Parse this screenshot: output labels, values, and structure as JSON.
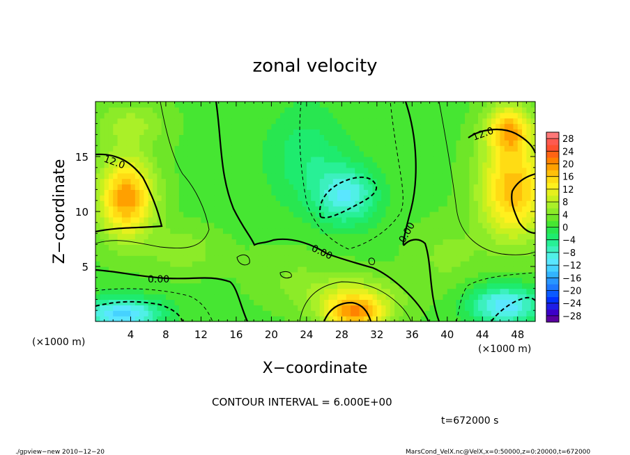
{
  "chart_data": {
    "type": "heatmap",
    "title": "zonal velocity",
    "xlabel": "X−coordinate",
    "ylabel": "Z−coordinate",
    "x_unit_left": "(×1000 m)",
    "x_unit_right": "(×1000 m)",
    "xlim": [
      0,
      50
    ],
    "ylim": [
      0,
      20
    ],
    "x_ticks": [
      4,
      8,
      12,
      16,
      20,
      24,
      28,
      32,
      36,
      40,
      44,
      48
    ],
    "x_tick_labels": [
      "4",
      "8",
      "12",
      "16",
      "20",
      "24",
      "28",
      "32",
      "36",
      "40",
      "44",
      "48"
    ],
    "y_ticks": [
      5,
      10,
      15
    ],
    "y_tick_labels": [
      "5",
      "10",
      "15"
    ],
    "colorbar": {
      "levels": [
        -30,
        -28,
        -26,
        -24,
        -22,
        -20,
        -18,
        -16,
        -14,
        -12,
        -10,
        -8,
        -6,
        -4,
        -2,
        0,
        2,
        4,
        6,
        8,
        10,
        12,
        14,
        16,
        18,
        20,
        22,
        24,
        26,
        28,
        30
      ],
      "colors": [
        "#5a00a0",
        "#3c00c8",
        "#1e1ee6",
        "#0032ff",
        "#0a5aff",
        "#1e78ff",
        "#2896ff",
        "#32b4ff",
        "#46d2ff",
        "#5ae6ff",
        "#50f0e6",
        "#3cf0be",
        "#28f096",
        "#1eeb6e",
        "#28e650",
        "#46e632",
        "#6ee628",
        "#8ceb28",
        "#aaf028",
        "#c8f01e",
        "#e6f01e",
        "#fff01e",
        "#ffdc14",
        "#ffc00a",
        "#ffa000",
        "#ff8200",
        "#ff6414",
        "#ff5030",
        "#ff5a50",
        "#ff7878"
      ],
      "tick_values": [
        28,
        24,
        20,
        16,
        12,
        8,
        4,
        0,
        -4,
        -8,
        -12,
        -16,
        -20,
        -24,
        -28
      ],
      "tick_labels": [
        "28",
        "24",
        "20",
        "16",
        "12",
        "8",
        "4",
        "0",
        "−4",
        "−8",
        "−12",
        "−16",
        "−20",
        "−24",
        "−28"
      ]
    },
    "contour_labels": [
      "12.0",
      "12.0",
      "0.00",
      "0.00",
      "0.00"
    ],
    "contour_interval_text": "CONTOUR INTERVAL =  6.000E+00",
    "time_text": "t=672000 s",
    "footer_left": "./gpview−new   2010−12−20",
    "footer_right": "MarsCond_VelX.nc@VelX,x=0:50000,z=0:20000,t=672000",
    "features": [
      {
        "x": 3.5,
        "z": 11.3,
        "value": 18,
        "sx": 3.2,
        "sz": 3.6
      },
      {
        "x": 47.5,
        "z": 12.0,
        "value": 16,
        "sx": 3.8,
        "sz": 4.5
      },
      {
        "x": 47.0,
        "z": 17.5,
        "value": 14,
        "sx": 2.6,
        "sz": 2.2
      },
      {
        "x": 4.0,
        "z": 18.0,
        "value": 5,
        "sx": 4.0,
        "sz": 2.0
      },
      {
        "x": 28.5,
        "z": 11.5,
        "value": -11,
        "sx": 3.5,
        "sz": 2.6
      },
      {
        "x": 24.0,
        "z": 15.0,
        "value": -5,
        "sx": 4.5,
        "sz": 4.5
      },
      {
        "x": 29.5,
        "z": 0.8,
        "value": 16,
        "sx": 3.5,
        "sz": 1.6
      },
      {
        "x": 29.0,
        "z": 2.5,
        "value": 6,
        "sx": 6.0,
        "sz": 2.0
      },
      {
        "x": 3.0,
        "z": 0.7,
        "value": -14,
        "sx": 4.5,
        "sz": 1.5
      },
      {
        "x": 46.5,
        "z": 1.5,
        "value": -13,
        "sx": 4.0,
        "sz": 1.8
      },
      {
        "x": 22.0,
        "z": 4.5,
        "value": 2,
        "sx": 5.0,
        "sz": 2.5
      },
      {
        "x": 10.0,
        "z": 6.5,
        "value": 4,
        "sx": 4.0,
        "sz": 2.0
      },
      {
        "x": 40.0,
        "z": 6.0,
        "value": 3,
        "sx": 4.0,
        "sz": 3.0
      }
    ]
  }
}
